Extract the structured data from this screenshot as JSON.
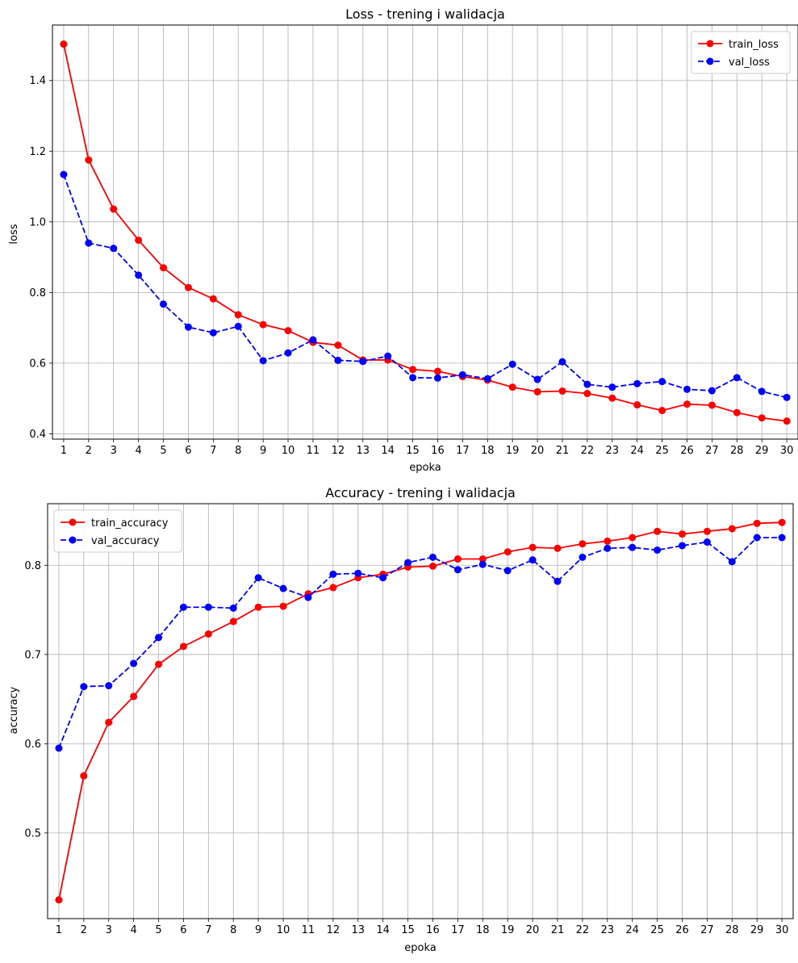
{
  "chart_data": [
    {
      "type": "line",
      "title": "Loss - trening i walidacja",
      "xlabel": "epoka",
      "ylabel": "loss",
      "x": [
        1,
        2,
        3,
        4,
        5,
        6,
        7,
        8,
        9,
        10,
        11,
        12,
        13,
        14,
        15,
        16,
        17,
        18,
        19,
        20,
        21,
        22,
        23,
        24,
        25,
        26,
        27,
        28,
        29,
        30
      ],
      "xlim": [
        0.55,
        30.45
      ],
      "ylim": [
        0.385,
        1.557
      ],
      "yticks": [
        0.4,
        0.6,
        0.8,
        1.0,
        1.2,
        1.4
      ],
      "ytick_labels": [
        "0.4",
        "0.6",
        "0.8",
        "1.0",
        "1.2",
        "1.4"
      ],
      "grid": true,
      "legend_position": "upper right",
      "series": [
        {
          "name": "train_loss",
          "color": "#ff0000",
          "linestyle": "solid",
          "marker": "circle",
          "values": [
            1.503,
            1.175,
            1.036,
            0.948,
            0.87,
            0.814,
            0.782,
            0.737,
            0.709,
            0.692,
            0.659,
            0.651,
            0.609,
            0.609,
            0.582,
            0.577,
            0.562,
            0.552,
            0.532,
            0.519,
            0.521,
            0.514,
            0.501,
            0.482,
            0.466,
            0.484,
            0.481,
            0.46,
            0.445,
            0.436
          ]
        },
        {
          "name": "val_loss",
          "color": "#0000ff",
          "linestyle": "dashed",
          "marker": "circle",
          "values": [
            1.134,
            0.94,
            0.925,
            0.849,
            0.767,
            0.702,
            0.686,
            0.704,
            0.607,
            0.629,
            0.666,
            0.608,
            0.605,
            0.62,
            0.559,
            0.558,
            0.567,
            0.556,
            0.597,
            0.554,
            0.604,
            0.54,
            0.532,
            0.542,
            0.548,
            0.526,
            0.522,
            0.559,
            0.52,
            0.503
          ]
        }
      ]
    },
    {
      "type": "line",
      "title": "Accuracy - trening i walidacja",
      "xlabel": "epoka",
      "ylabel": "accuracy",
      "x": [
        1,
        2,
        3,
        4,
        5,
        6,
        7,
        8,
        9,
        10,
        11,
        12,
        13,
        14,
        15,
        16,
        17,
        18,
        19,
        20,
        21,
        22,
        23,
        24,
        25,
        26,
        27,
        28,
        29,
        30
      ],
      "xlim": [
        0.55,
        30.45
      ],
      "ylim": [
        0.404,
        0.869
      ],
      "yticks": [
        0.5,
        0.6,
        0.7,
        0.8
      ],
      "ytick_labels": [
        "0.5",
        "0.6",
        "0.7",
        "0.8"
      ],
      "grid": true,
      "legend_position": "upper left",
      "series": [
        {
          "name": "train_accuracy",
          "color": "#ff0000",
          "linestyle": "solid",
          "marker": "circle",
          "values": [
            0.425,
            0.564,
            0.624,
            0.653,
            0.689,
            0.709,
            0.723,
            0.737,
            0.753,
            0.754,
            0.768,
            0.775,
            0.786,
            0.79,
            0.798,
            0.799,
            0.807,
            0.807,
            0.815,
            0.82,
            0.819,
            0.824,
            0.827,
            0.831,
            0.838,
            0.835,
            0.838,
            0.841,
            0.847,
            0.848
          ]
        },
        {
          "name": "val_accuracy",
          "color": "#0000ff",
          "linestyle": "dashed",
          "marker": "circle",
          "values": [
            0.595,
            0.664,
            0.665,
            0.69,
            0.719,
            0.753,
            0.753,
            0.752,
            0.786,
            0.774,
            0.764,
            0.79,
            0.791,
            0.786,
            0.803,
            0.809,
            0.795,
            0.801,
            0.794,
            0.806,
            0.782,
            0.809,
            0.819,
            0.82,
            0.817,
            0.822,
            0.826,
            0.804,
            0.831,
            0.831
          ]
        }
      ]
    }
  ]
}
